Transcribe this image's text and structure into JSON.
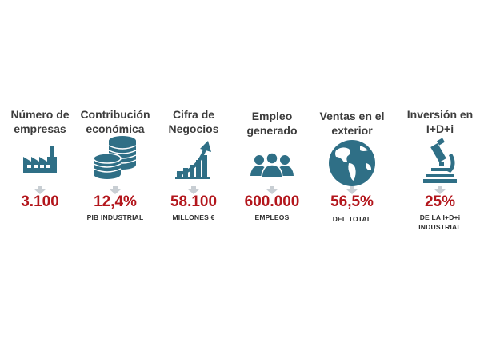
{
  "colors": {
    "icon_teal": "#2f6f86",
    "value_red": "#b3161c",
    "title_gray": "#3c3c3c",
    "arrow_gray": "#c8ced3"
  },
  "stats": [
    {
      "title": "Número de empresas",
      "value": "3.100",
      "caption": "",
      "icon": "factory-icon"
    },
    {
      "title": "Contribución económica",
      "value": "12,4%",
      "caption": "PIB  INDUSTRIAL",
      "icon": "coins-icon"
    },
    {
      "title": "Cifra de Negocios",
      "value": "58.100",
      "caption": "MILLONES €",
      "icon": "growth-chart-icon"
    },
    {
      "title": "Empleo generado",
      "value": "600.000",
      "caption": "EMPLEOS",
      "icon": "people-icon"
    },
    {
      "title": "Ventas en el exterior",
      "value": "56,5%",
      "caption": "DEL TOTAL",
      "icon": "globe-icon"
    },
    {
      "title": "Inversión en I+D+i",
      "value": "25%",
      "caption": "DE LA I+D+i INDUSTRIAL",
      "icon": "microscope-icon"
    }
  ]
}
